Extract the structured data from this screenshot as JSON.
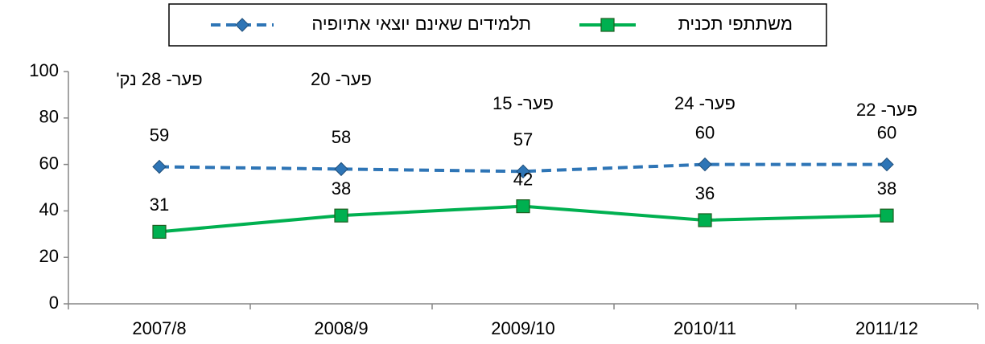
{
  "chart_data": {
    "type": "line",
    "categories": [
      "2007/8",
      "2008/9",
      "2009/10",
      "2010/11",
      "2011/12"
    ],
    "series": [
      {
        "name": "תלמידים שאינם יוצאי אתיופיה",
        "color": "#2e75b6",
        "dash": true,
        "marker": "diamond",
        "values": [
          59,
          58,
          57,
          60,
          60
        ]
      },
      {
        "name": "משתתפי תכנית",
        "color": "#00b050",
        "dash": false,
        "marker": "square",
        "values": [
          31,
          38,
          42,
          36,
          38
        ]
      }
    ],
    "annotations": [
      "פער- 28 נק'",
      "פער- 20",
      "פער- 15",
      "פער- 24",
      "פער- 22"
    ],
    "ylim": [
      0,
      100
    ],
    "yticks": [
      0,
      20,
      40,
      60,
      80,
      100
    ],
    "grid": false,
    "legend": "top"
  }
}
